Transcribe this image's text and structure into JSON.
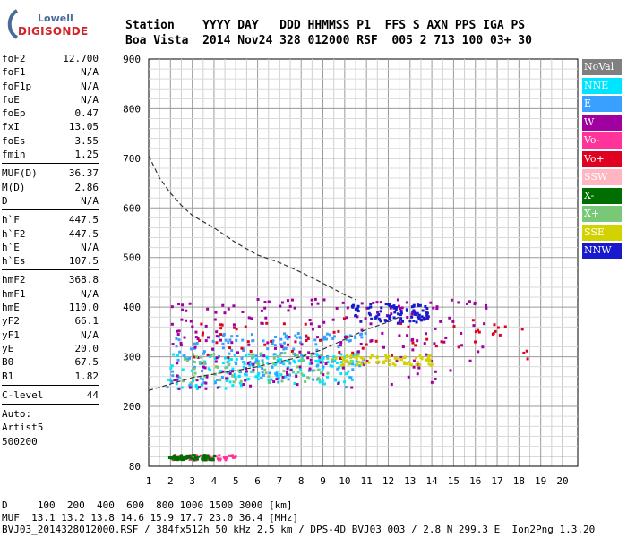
{
  "logo": {
    "brand_top": "Lowell",
    "brand_bottom": "DIGISONDE"
  },
  "header": {
    "line1": "Station    YYYY DAY   DDD HHMMSS P1  FFS S AXN PPS IGA PS",
    "line2": "Boa Vista  2014 Nov24 328 012000 RSF  005 2 713 100 03+ 30"
  },
  "params": [
    {
      "k": "foF2",
      "v": "12.700"
    },
    {
      "k": "foF1",
      "v": "N/A"
    },
    {
      "k": "foF1p",
      "v": "N/A"
    },
    {
      "k": "foE",
      "v": "N/A"
    },
    {
      "k": "foEp",
      "v": "0.47"
    },
    {
      "k": "fxI",
      "v": "13.05"
    },
    {
      "k": "foEs",
      "v": "3.55"
    },
    {
      "k": "fmin",
      "v": "1.25"
    },
    {
      "sep": true
    },
    {
      "k": "MUF(D)",
      "v": "36.37"
    },
    {
      "k": "M(D)",
      "v": "2.86"
    },
    {
      "k": "D",
      "v": "N/A"
    },
    {
      "sep": true
    },
    {
      "k": "h`F",
      "v": "447.5"
    },
    {
      "k": "h`F2",
      "v": "447.5"
    },
    {
      "k": "h`E",
      "v": "N/A"
    },
    {
      "k": "h`Es",
      "v": "107.5"
    },
    {
      "sep": true
    },
    {
      "k": "hmF2",
      "v": "368.8"
    },
    {
      "k": "hmF1",
      "v": "N/A"
    },
    {
      "k": "hmE",
      "v": "110.0"
    },
    {
      "k": "yF2",
      "v": "66.1"
    },
    {
      "k": "yF1",
      "v": "N/A"
    },
    {
      "k": "yE",
      "v": "20.0"
    },
    {
      "k": "B0",
      "v": "67.5"
    },
    {
      "k": "B1",
      "v": "1.82"
    },
    {
      "sep": true
    },
    {
      "k": "C-level",
      "v": "44"
    },
    {
      "sep": true
    },
    {
      "plain": "Auto:"
    },
    {
      "plain": "Artist5"
    },
    {
      "plain": "500200"
    }
  ],
  "legend": [
    {
      "label": "NoVal",
      "color": "#808080"
    },
    {
      "label": "NNE",
      "color": "#00e5ff"
    },
    {
      "label": "E",
      "color": "#3aa0ff"
    },
    {
      "label": "W",
      "color": "#a000a0"
    },
    {
      "label": "Vo-",
      "color": "#ff3399"
    },
    {
      "label": "Vo+",
      "color": "#e00020"
    },
    {
      "label": "SSW",
      "color": "#ffb6c1"
    },
    {
      "label": "X-",
      "color": "#006e00"
    },
    {
      "label": "X+",
      "color": "#78c878"
    },
    {
      "label": "SSE",
      "color": "#d2d200"
    },
    {
      "label": "NNW",
      "color": "#1a1acd"
    }
  ],
  "bottom": {
    "line1": "D     100  200  400  600  800 1000 1500 3000 [km]",
    "line2": "MUF  13.1 13.2 13.8 14.6 15.9 17.7 23.0 36.4 [MHz]",
    "line3": "BVJ03_2014328012000.RSF / 384fx512h 50 kHz 2.5 km / DPS-4D BVJ03 003 / 2.8 N 299.3 E  Ion2Png 1.3.20"
  },
  "chart_data": {
    "type": "scatter",
    "title": "",
    "xlabel": "",
    "ylabel": "",
    "xlim": [
      1,
      20
    ],
    "ylim": [
      80,
      900
    ],
    "x_ticks": [
      1,
      2,
      3,
      4,
      5,
      6,
      7,
      8,
      9,
      10,
      11,
      12,
      13,
      14,
      15,
      16,
      17,
      18,
      19,
      20
    ],
    "y_ticks": [
      80,
      200,
      300,
      400,
      500,
      600,
      700,
      800,
      900
    ],
    "grid": true,
    "legend_position": "right",
    "profile_curve": {
      "x": [
        1.0,
        1.5,
        2.0,
        2.5,
        3.0,
        4.0,
        5.0,
        6.0,
        7.0,
        8.0,
        9.0,
        10.0,
        10.5
      ],
      "y": [
        705,
        660,
        630,
        605,
        585,
        560,
        530,
        505,
        490,
        470,
        448,
        425,
        415
      ]
    },
    "trace_curve": {
      "x": [
        1.0,
        2.0,
        3.0,
        4.0,
        5.0,
        6.0,
        7.0,
        8.0,
        9.0,
        10.0,
        11.0,
        12.0,
        12.5
      ],
      "y": [
        232,
        245,
        258,
        265,
        272,
        280,
        290,
        300,
        315,
        335,
        355,
        370,
        380
      ]
    },
    "series": [
      {
        "name": "NNE",
        "region": {
          "x": [
            1.8,
            10.5
          ],
          "y": [
            235,
            310
          ]
        }
      },
      {
        "name": "E",
        "region": {
          "x": [
            1.8,
            11.0
          ],
          "y": [
            240,
            350
          ]
        }
      },
      {
        "name": "W",
        "region": {
          "x": [
            2.0,
            16.5
          ],
          "y": [
            230,
            420
          ]
        }
      },
      {
        "name": "Vo-",
        "region": {
          "x": [
            2.0,
            5.0
          ],
          "y": [
            95,
            105
          ]
        }
      },
      {
        "name": "Vo+",
        "region": {
          "x": [
            3.0,
            18.5
          ],
          "y": [
            290,
            380
          ]
        }
      },
      {
        "name": "X-",
        "region": {
          "x": [
            1.9,
            4.0
          ],
          "y": [
            95,
            105
          ]
        }
      },
      {
        "name": "X+",
        "region": {
          "x": [
            2.5,
            9.5
          ],
          "y": [
            250,
            310
          ]
        }
      },
      {
        "name": "SSE",
        "region": {
          "x": [
            9.5,
            14.0
          ],
          "y": [
            285,
            305
          ]
        }
      },
      {
        "name": "NNW",
        "region": {
          "x": [
            10.2,
            13.8
          ],
          "y": [
            370,
            410
          ]
        }
      }
    ]
  }
}
